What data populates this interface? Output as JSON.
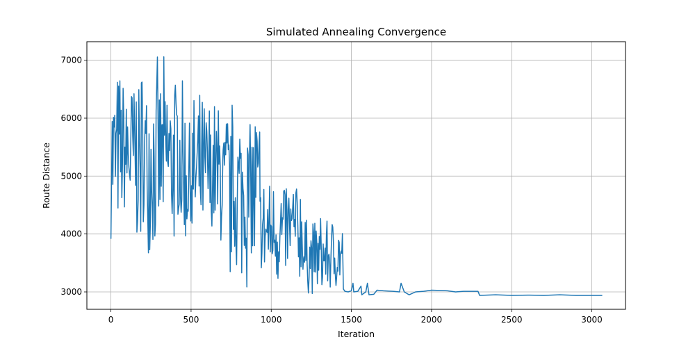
{
  "chart_data": {
    "type": "line",
    "title": "Simulated Annealing Convergence",
    "xlabel": "Iteration",
    "ylabel": "Route Distance",
    "xlim": [
      -150,
      3210
    ],
    "ylim": [
      2700,
      7320
    ],
    "xticks": [
      0,
      500,
      1000,
      1500,
      2000,
      2500,
      3000
    ],
    "yticks": [
      3000,
      4000,
      5000,
      6000,
      7000
    ],
    "grid": true,
    "legend": "none",
    "line_color": "#1f77b4",
    "series": [
      {
        "noise_segments": [
          {
            "x_start": 0,
            "x_end": 150,
            "low": 3860,
            "high": 7000
          },
          {
            "x_start": 150,
            "x_end": 450,
            "low": 3600,
            "high": 7120
          },
          {
            "x_start": 450,
            "x_end": 700,
            "low": 3550,
            "high": 6550
          },
          {
            "x_start": 700,
            "x_end": 930,
            "low": 2950,
            "high": 6550
          },
          {
            "x_start": 930,
            "x_end": 1200,
            "low": 3000,
            "high": 5150
          },
          {
            "x_start": 1200,
            "x_end": 1450,
            "low": 2900,
            "high": 4380
          }
        ],
        "points": [
          [
            1450,
            3050
          ],
          [
            1460,
            3010
          ],
          [
            1480,
            3000
          ],
          [
            1500,
            3020
          ],
          [
            1510,
            3150
          ],
          [
            1515,
            3000
          ],
          [
            1540,
            3010
          ],
          [
            1560,
            3100
          ],
          [
            1565,
            2950
          ],
          [
            1590,
            3000
          ],
          [
            1600,
            3150
          ],
          [
            1610,
            2950
          ],
          [
            1640,
            2960
          ],
          [
            1660,
            3030
          ],
          [
            1700,
            3020
          ],
          [
            1760,
            3010
          ],
          [
            1800,
            3000
          ],
          [
            1810,
            3150
          ],
          [
            1830,
            3000
          ],
          [
            1860,
            2950
          ],
          [
            1900,
            3000
          ],
          [
            1950,
            3010
          ],
          [
            2000,
            3030
          ],
          [
            2100,
            3020
          ],
          [
            2150,
            3000
          ],
          [
            2200,
            3010
          ],
          [
            2290,
            3010
          ],
          [
            2300,
            2940
          ],
          [
            2400,
            2950
          ],
          [
            2500,
            2940
          ],
          [
            2600,
            2945
          ],
          [
            2700,
            2940
          ],
          [
            2800,
            2950
          ],
          [
            2900,
            2940
          ],
          [
            3000,
            2940
          ],
          [
            3065,
            2940
          ]
        ]
      }
    ]
  }
}
